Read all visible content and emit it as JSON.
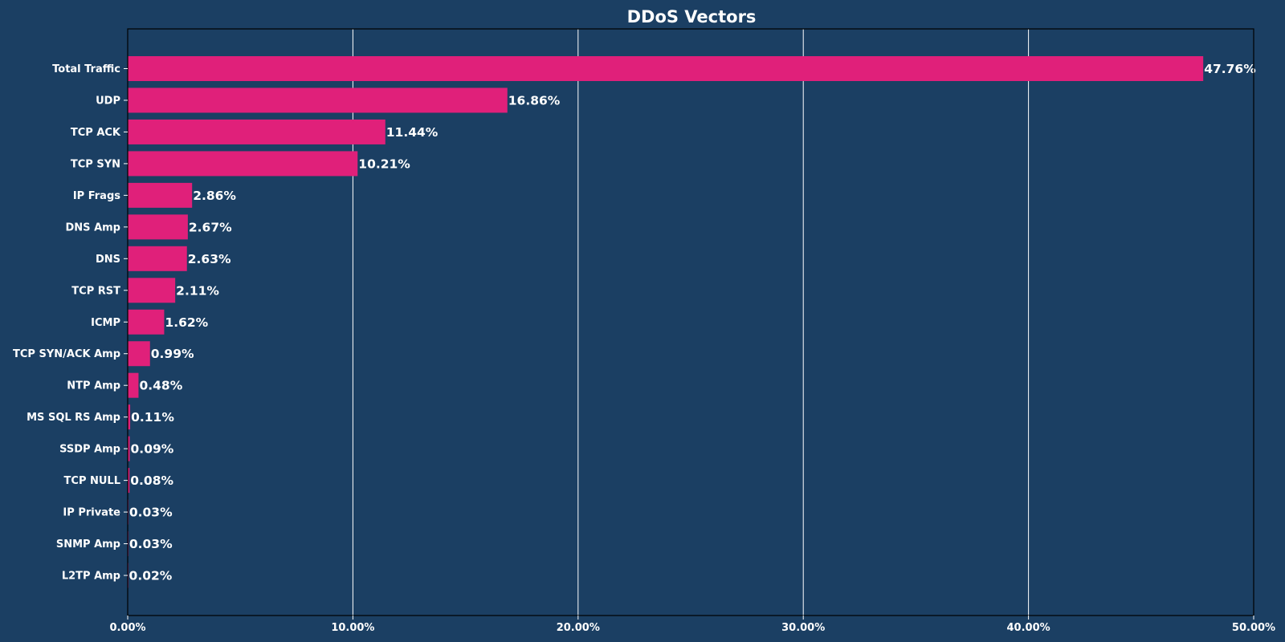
{
  "chart_data": {
    "type": "bar",
    "orientation": "horizontal",
    "title": "DDoS Vectors",
    "xlabel": "",
    "ylabel": "",
    "xlim": [
      0,
      50
    ],
    "x_ticks": [
      0,
      10,
      20,
      30,
      40,
      50
    ],
    "x_tick_labels": [
      "0.00%",
      "10.00%",
      "20.00%",
      "30.00%",
      "40.00%",
      "50.00%"
    ],
    "grid": "vertical",
    "categories": [
      "Total Traffic",
      "UDP",
      "TCP ACK",
      "TCP SYN",
      "IP Frags",
      "DNS Amp",
      "DNS",
      "TCP RST",
      "ICMP",
      "TCP SYN/ACK Amp",
      "NTP Amp",
      "MS SQL RS Amp",
      "SSDP Amp",
      "TCP NULL",
      "IP Private",
      "SNMP Amp",
      "L2TP Amp"
    ],
    "values": [
      47.76,
      16.86,
      11.44,
      10.21,
      2.86,
      2.67,
      2.63,
      2.11,
      1.62,
      0.99,
      0.48,
      0.11,
      0.09,
      0.08,
      0.03,
      0.03,
      0.02
    ],
    "value_labels": [
      "47.76%",
      "16.86%",
      "11.44%",
      "10.21%",
      "2.86%",
      "2.67%",
      "2.63%",
      "2.11%",
      "1.62%",
      "0.99%",
      "0.48%",
      "0.11%",
      "0.09%",
      "0.08%",
      "0.03%",
      "0.03%",
      "0.02%"
    ],
    "colors": {
      "background": "#1b3f63",
      "bar": "#e0207a",
      "text": "#ffffff",
      "grid": "#ffffff",
      "axis": "#000000"
    }
  }
}
